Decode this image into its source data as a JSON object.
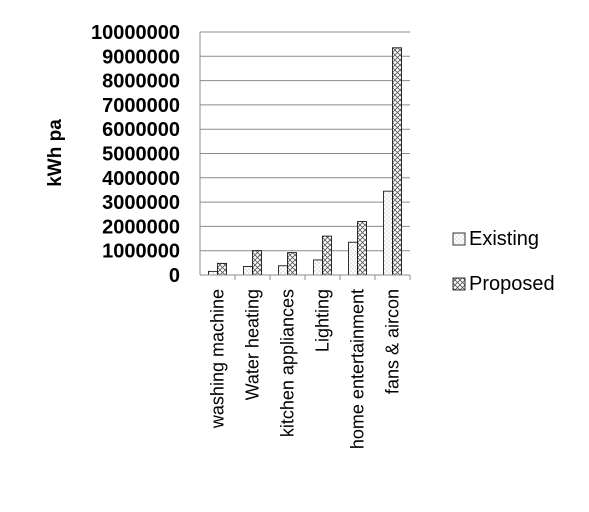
{
  "chart_data": {
    "type": "bar",
    "title": "",
    "xlabel": "",
    "ylabel": "kWh pa",
    "ylim": [
      0,
      10000000
    ],
    "yticks": [
      0,
      1000000,
      2000000,
      3000000,
      4000000,
      5000000,
      6000000,
      7000000,
      8000000,
      9000000,
      10000000
    ],
    "grid": true,
    "legend_position": "right",
    "categories": [
      "washing machine",
      "Water heating",
      "kitchen appliances",
      "Lighting",
      "home entertainment",
      "fans & aircon"
    ],
    "series": [
      {
        "name": "Existing",
        "pattern": "dots",
        "values": [
          150000,
          350000,
          380000,
          620000,
          1350000,
          3450000
        ]
      },
      {
        "name": "Proposed",
        "pattern": "crosshatch",
        "values": [
          480000,
          1000000,
          920000,
          1600000,
          2200000,
          9350000
        ]
      }
    ]
  }
}
